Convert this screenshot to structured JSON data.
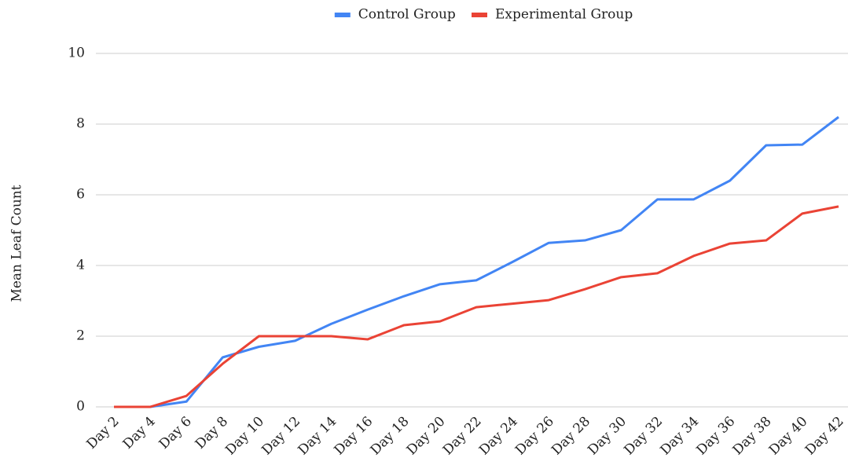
{
  "chart_data": {
    "type": "line",
    "y_label": "Mean Leaf Count",
    "categories": [
      "Day 2",
      "Day 4",
      "Day 6",
      "Day 8",
      "Day 10",
      "Day 12",
      "Day 14",
      "Day 16",
      "Day 18",
      "Day 20",
      "Day 22",
      "Day 24",
      "Day 26",
      "Day 28",
      "Day 30",
      "Day 32",
      "Day 34",
      "Day 36",
      "Day 38",
      "Day 40",
      "Day 42"
    ],
    "series": [
      {
        "name": "Control Group",
        "color": "#4285f4",
        "values": [
          0,
          0,
          0.15,
          1.4,
          1.7,
          1.87,
          2.35,
          2.75,
          3.13,
          3.47,
          3.58,
          4.1,
          4.64,
          4.71,
          5.0,
          5.87,
          5.87,
          6.4,
          7.4,
          7.42,
          8.2
        ]
      },
      {
        "name": "Experimental Group",
        "color": "#ea4335",
        "values": [
          0,
          0,
          0.31,
          1.22,
          2.0,
          2.0,
          2.0,
          1.91,
          2.31,
          2.42,
          2.82,
          2.92,
          3.02,
          3.33,
          3.67,
          3.78,
          4.27,
          4.62,
          4.71,
          5.47,
          5.67
        ]
      }
    ],
    "ylim": [
      0,
      10
    ],
    "yticks": [
      0,
      2,
      4,
      6,
      8,
      10
    ],
    "grid": true,
    "legend": "top"
  }
}
